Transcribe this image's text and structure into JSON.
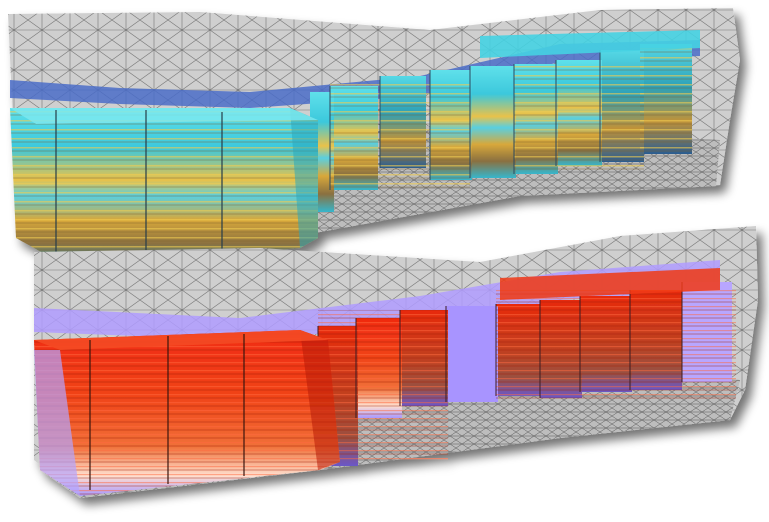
{
  "figure": {
    "panels": [
      {
        "id": "top",
        "colormap": [
          "#2fd0e0",
          "#6fe3ea",
          "#e8c040",
          "#8a6a30",
          "#3a6aa0"
        ],
        "mesh_color": "#c9c9c9",
        "edge_color": "#555555"
      },
      {
        "id": "bottom",
        "colormap": [
          "#b8a8ff",
          "#ffffff",
          "#f05020",
          "#d01808",
          "#7a2010"
        ],
        "mesh_color": "#c9c9c9",
        "edge_color": "#555555"
      }
    ]
  }
}
